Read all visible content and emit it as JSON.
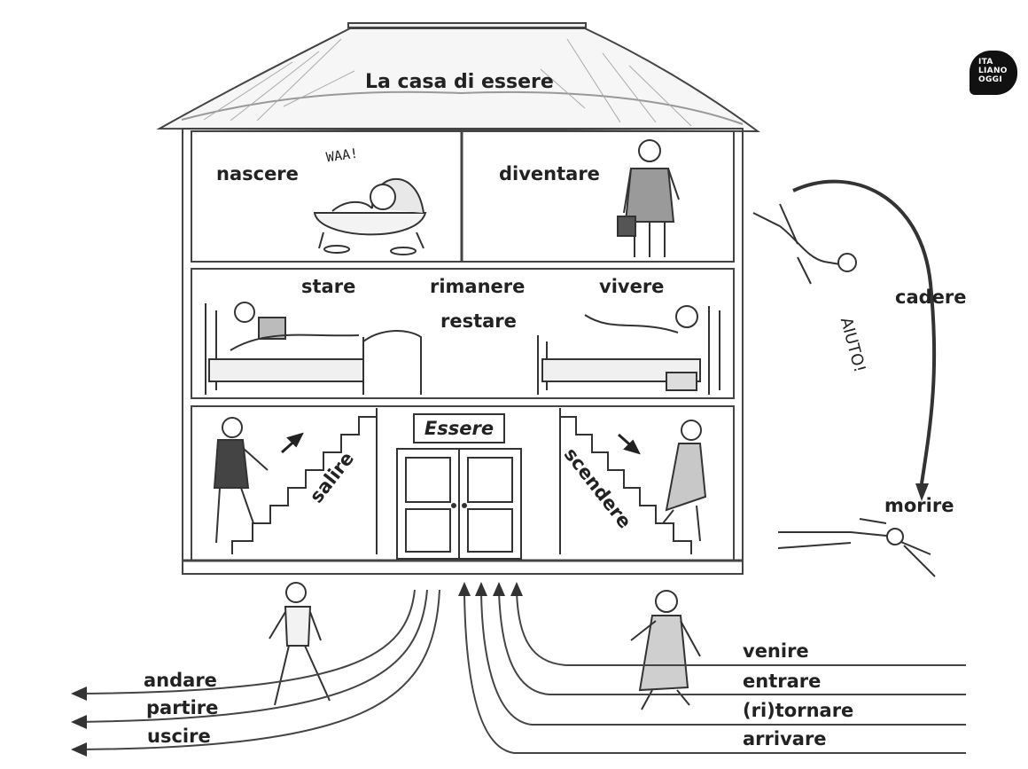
{
  "house": {
    "title": "La casa di essere",
    "door_sign": "Essere"
  },
  "verbs": {
    "nascere": "nascere",
    "diventare": "diventare",
    "stare": "stare",
    "rimanere": "rimanere",
    "restare": "restare",
    "vivere": "vivere",
    "salire": "salire",
    "scendere": "scendere",
    "cadere": "cadere",
    "morire": "morire",
    "andare": "andare",
    "partire": "partire",
    "uscire": "uscire",
    "venire": "venire",
    "entrare": "entrare",
    "ritornare": "(ri)tornare",
    "arrivare": "arrivare"
  },
  "sound_effects": {
    "baby_cry": "WAA!",
    "falling_shout": "AIUTO!"
  },
  "logo": {
    "line1": "ITA",
    "line2": "LIANO",
    "line3": "OGGI"
  },
  "colors": {
    "ink": "#222222",
    "arrows": "#444444"
  }
}
